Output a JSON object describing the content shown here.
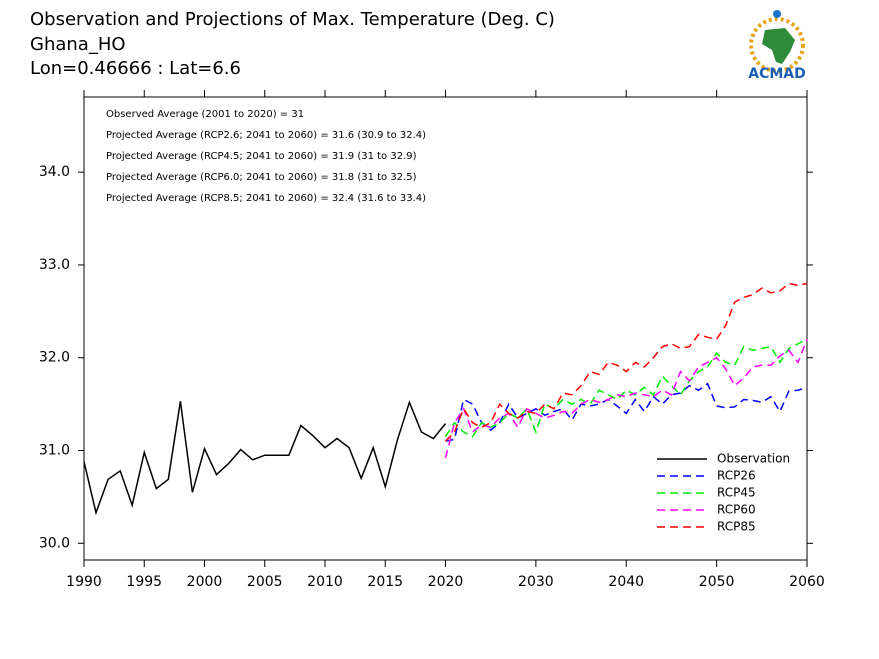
{
  "chart_data": [
    {
      "type": "line",
      "title": "Observation and Projections of Max. Temperature (Deg. C)",
      "subtitle": "Ghana_HO",
      "location": "Lon=0.46666 : Lat=6.6",
      "logo": "ACMAD",
      "annotations": [
        "Observed Average (2001 to 2020) = 31",
        "Projected Average (RCP2.6; 2041 to 2060) = 31.6 (30.9 to 32.4)",
        "Projected Average (RCP4.5; 2041 to 2060) = 31.9 (31 to 32.9)",
        "Projected Average (RCP6.0; 2041 to 2060) = 31.8 (31 to 32.5)",
        "Projected Average (RCP8.5; 2041 to 2060) = 32.4 (31.6 to 33.4)"
      ],
      "x": [
        1990,
        1991,
        1992,
        1993,
        1994,
        1995,
        1996,
        1997,
        1998,
        1999,
        2000,
        2001,
        2002,
        2003,
        2004,
        2005,
        2006,
        2007,
        2008,
        2009,
        2010,
        2011,
        2012,
        2013,
        2014,
        2015,
        2016,
        2017,
        2018,
        2019,
        2020
      ],
      "series": [
        {
          "name": "Observation",
          "color": "#000000",
          "dashed": false,
          "values": [
            30.88,
            30.33,
            30.69,
            30.78,
            30.41,
            30.98,
            30.59,
            30.69,
            31.53,
            30.55,
            31.02,
            30.74,
            30.86,
            31.01,
            30.9,
            30.95,
            30.95,
            30.95,
            31.27,
            31.16,
            31.03,
            31.13,
            31.03,
            30.7,
            31.03,
            30.61,
            31.11,
            31.52,
            31.2,
            31.13,
            31.29
          ]
        }
      ],
      "xlim": [
        1990,
        2020
      ],
      "xticks": [
        1990,
        1995,
        2000,
        2005,
        2010,
        2015,
        2020
      ],
      "ylim": [
        29.82,
        34.81
      ],
      "yticks": [
        {
          "value": 30,
          "label": "30.0"
        },
        {
          "value": 31,
          "label": "31.0"
        },
        {
          "value": 32,
          "label": "32.0"
        },
        {
          "value": 33,
          "label": "33.0"
        },
        {
          "value": 34,
          "label": "34.0"
        }
      ],
      "legend": "lower right"
    },
    {
      "type": "line",
      "x": [
        2020,
        2021,
        2022,
        2023,
        2024,
        2025,
        2026,
        2027,
        2028,
        2029,
        2030,
        2031,
        2032,
        2033,
        2034,
        2035,
        2036,
        2037,
        2038,
        2039,
        2040,
        2041,
        2042,
        2043,
        2044,
        2045,
        2046,
        2047,
        2048,
        2049,
        2050,
        2051,
        2052,
        2053,
        2054,
        2055,
        2056,
        2057,
        2058,
        2059,
        2060
      ],
      "series": [
        {
          "name": "RCP26",
          "color": "#0000ff",
          "dashed": true,
          "values": [
            31.1,
            31.12,
            31.55,
            31.5,
            31.3,
            31.22,
            31.3,
            31.5,
            31.35,
            31.4,
            31.45,
            31.38,
            31.42,
            31.45,
            31.33,
            31.5,
            31.48,
            31.5,
            31.55,
            31.48,
            31.4,
            31.55,
            31.42,
            31.58,
            31.5,
            31.6,
            31.62,
            31.7,
            31.65,
            31.72,
            31.48,
            31.46,
            31.47,
            31.55,
            31.54,
            31.52,
            31.58,
            31.42,
            31.64,
            31.65,
            31.68
          ]
        },
        {
          "name": "RCP45",
          "color": "#00ee00",
          "dashed": true,
          "values": [
            31.15,
            31.3,
            31.2,
            31.15,
            31.3,
            31.25,
            31.3,
            31.4,
            31.35,
            31.45,
            31.2,
            31.5,
            31.45,
            31.55,
            31.5,
            31.55,
            31.5,
            31.65,
            31.6,
            31.55,
            31.65,
            31.6,
            31.68,
            31.6,
            31.8,
            31.7,
            31.6,
            31.75,
            31.85,
            31.9,
            32.05,
            31.95,
            31.92,
            32.12,
            32.08,
            32.1,
            32.12,
            31.95,
            32.1,
            32.15,
            32.2
          ]
        },
        {
          "name": "RCP60",
          "color": "#ff00ff",
          "dashed": true,
          "values": [
            30.92,
            31.3,
            31.45,
            31.2,
            31.28,
            31.25,
            31.35,
            31.4,
            31.25,
            31.45,
            31.4,
            31.35,
            31.38,
            31.42,
            31.4,
            31.5,
            31.55,
            31.52,
            31.55,
            31.6,
            31.58,
            31.62,
            31.6,
            31.58,
            31.65,
            31.6,
            31.85,
            31.75,
            31.9,
            31.95,
            32.0,
            31.88,
            31.7,
            31.78,
            31.9,
            31.92,
            31.92,
            32.02,
            32.08,
            31.95,
            32.2
          ]
        },
        {
          "name": "RCP85",
          "color": "#ff0000",
          "dashed": true,
          "values": [
            31.1,
            31.2,
            31.45,
            31.3,
            31.25,
            31.3,
            31.5,
            31.4,
            31.35,
            31.42,
            31.4,
            31.5,
            31.45,
            31.62,
            31.6,
            31.7,
            31.85,
            31.82,
            31.95,
            31.92,
            31.85,
            31.95,
            31.9,
            32.0,
            32.12,
            32.15,
            32.1,
            32.12,
            32.25,
            32.22,
            32.2,
            32.35,
            32.6,
            32.65,
            32.68,
            32.75,
            32.7,
            32.72,
            32.8,
            32.78,
            32.8
          ]
        }
      ],
      "xlim": [
        2020,
        2060
      ],
      "xticks": [
        2030,
        2040,
        2050,
        2060
      ]
    }
  ]
}
